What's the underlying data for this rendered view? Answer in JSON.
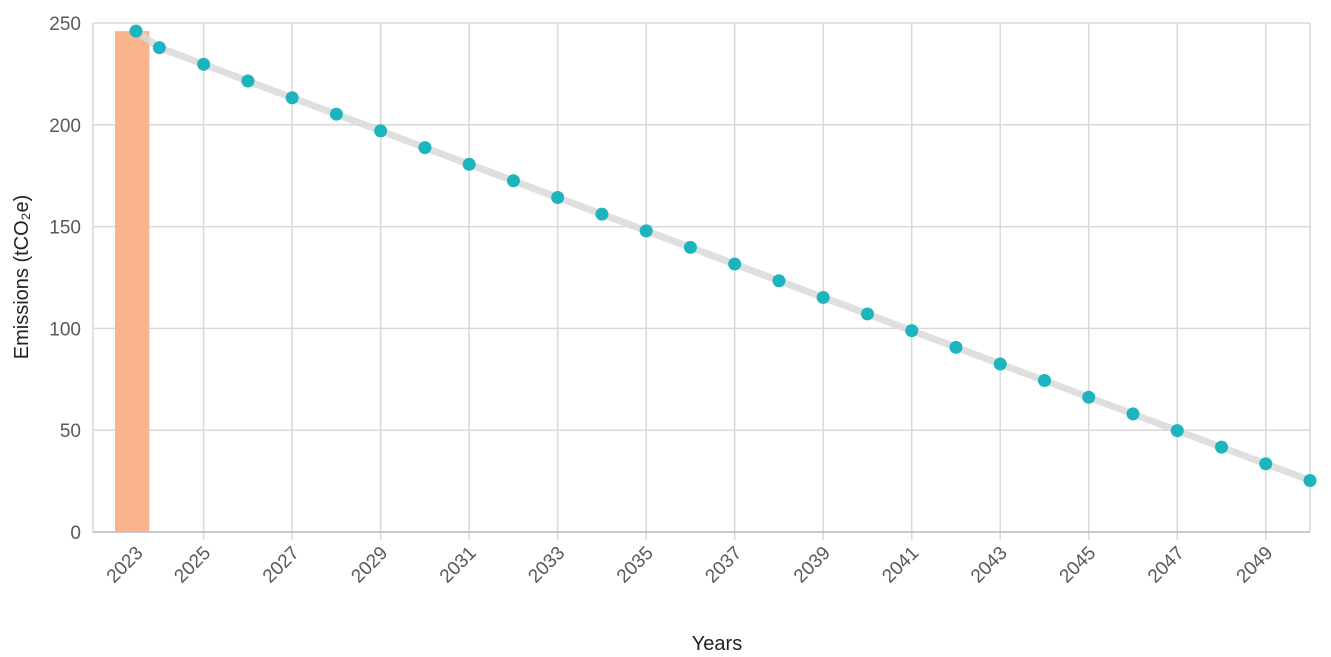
{
  "chart_data": {
    "type": "bar+line",
    "title": "",
    "xlabel": "Years",
    "ylabel": "Emissions (tCO₂e)",
    "ylim": [
      0,
      250
    ],
    "yticks": [
      0,
      50,
      100,
      150,
      200,
      250
    ],
    "xticks": [
      2023,
      2025,
      2027,
      2029,
      2031,
      2033,
      2035,
      2037,
      2039,
      2041,
      2043,
      2045,
      2047,
      2049
    ],
    "grid": true,
    "colors": {
      "bar": "#f7b48d",
      "line": "#d9d9d9",
      "point": "#1cb5bd",
      "grid": "#d9d9d9",
      "axis": "#bfbfbf"
    },
    "series": [
      {
        "type": "bar",
        "x": [
          2023
        ],
        "values": [
          246
        ]
      },
      {
        "type": "line",
        "x": [
          2023,
          2024,
          2025,
          2026,
          2027,
          2028,
          2029,
          2030,
          2031,
          2032,
          2033,
          2034,
          2035,
          2036,
          2037,
          2038,
          2039,
          2040,
          2041,
          2042,
          2043,
          2044,
          2045,
          2046,
          2047,
          2048,
          2049,
          2050
        ],
        "values": [
          246,
          237.9,
          229.7,
          221.5,
          213.3,
          205.2,
          197.0,
          188.8,
          180.6,
          172.5,
          164.3,
          156.1,
          147.9,
          139.8,
          131.6,
          123.4,
          115.2,
          107.1,
          98.9,
          90.7,
          82.5,
          74.4,
          66.2,
          58.0,
          49.8,
          41.7,
          33.5,
          25.3
        ]
      }
    ]
  }
}
